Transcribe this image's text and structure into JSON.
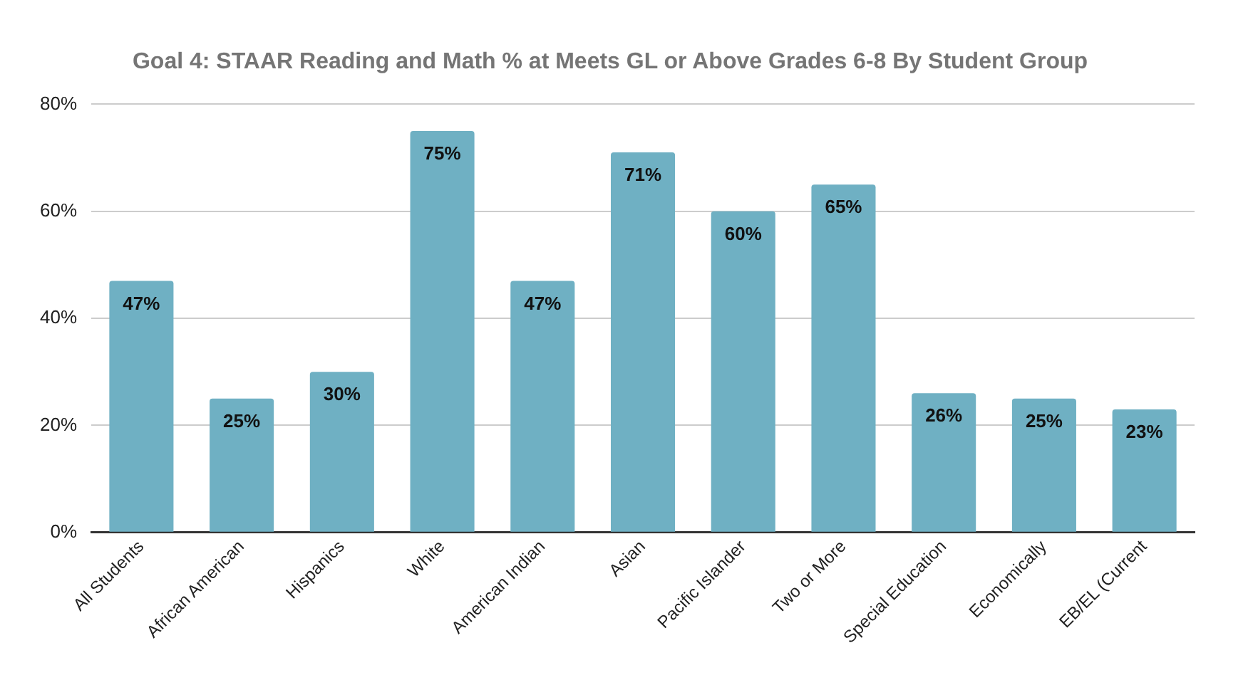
{
  "chart_data": {
    "type": "bar",
    "title": "Goal 4: STAAR Reading and Math % at Meets GL or Above Grades 6-8 By Student Group",
    "categories": [
      "All Students",
      "African American",
      "Hispanics",
      "White",
      "American Indian",
      "Asian",
      "Pacific Islander",
      "Two or More",
      "Special Education",
      "Economically",
      "EB/EL (Current"
    ],
    "values": [
      47,
      25,
      30,
      75,
      47,
      71,
      60,
      65,
      26,
      25,
      23
    ],
    "value_labels": [
      "47%",
      "25%",
      "30%",
      "75%",
      "47%",
      "71%",
      "60%",
      "65%",
      "26%",
      "25%",
      "23%"
    ],
    "color": "#6fb0c3",
    "ylim": [
      0,
      80
    ],
    "yticks": [
      {
        "value": 0,
        "label": "0%"
      },
      {
        "value": 20,
        "label": "20%"
      },
      {
        "value": 40,
        "label": "40%"
      },
      {
        "value": 60,
        "label": "60%"
      },
      {
        "value": 80,
        "label": "80%"
      }
    ],
    "grid": "y",
    "legend": false
  }
}
